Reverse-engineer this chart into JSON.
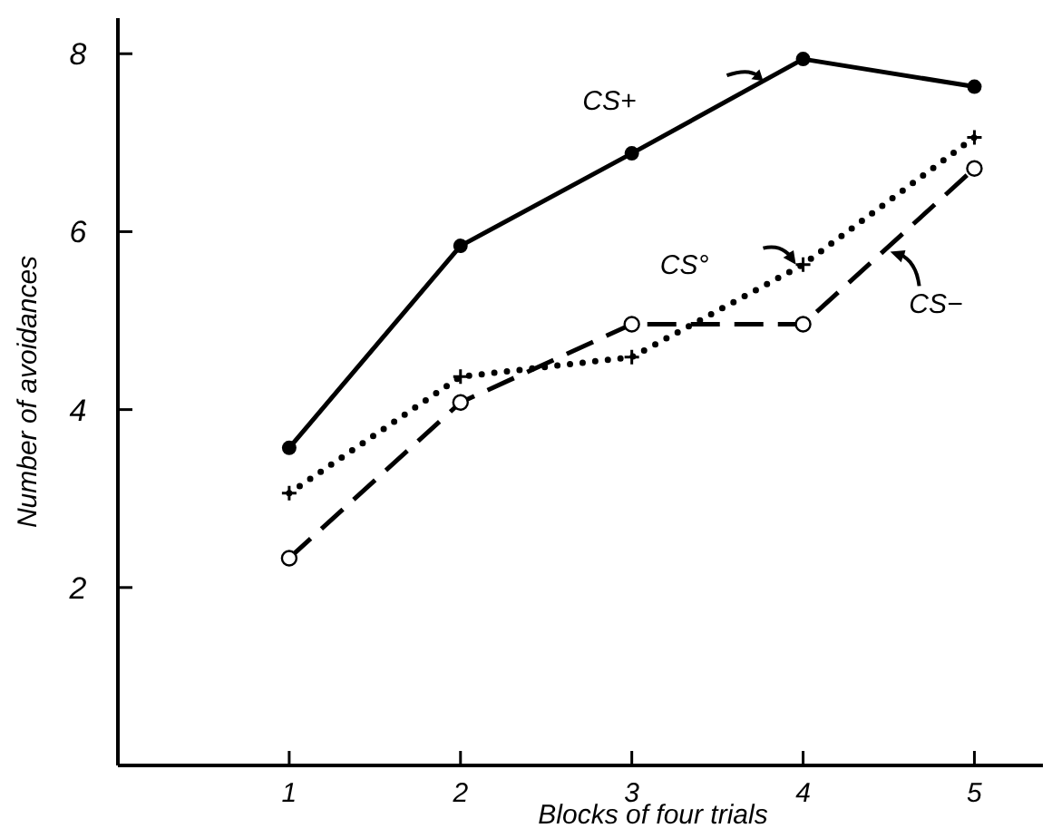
{
  "chart_data": {
    "type": "line",
    "xlabel": "Blocks of four trials",
    "ylabel": "Number of avoidances",
    "x": [
      1,
      2,
      3,
      4,
      5
    ],
    "xlim": [
      0,
      5.4
    ],
    "xticks": [
      1,
      2,
      3,
      4,
      5
    ],
    "ylim": [
      0,
      8.4
    ],
    "yticks": [
      2,
      4,
      6,
      8
    ],
    "grid": false,
    "series": [
      {
        "name": "CS+",
        "color": "#000000",
        "values": [
          3.57,
          5.84,
          6.88,
          7.94,
          7.63
        ],
        "marker": "circle",
        "line_style": "solid"
      },
      {
        "name": "CS°",
        "color": "#000000",
        "values": [
          3.06,
          4.37,
          4.59,
          5.63,
          7.06
        ],
        "marker": "cross",
        "line_style": "dotted"
      },
      {
        "name": "CS−",
        "color": "#000000",
        "values": [
          2.33,
          4.08,
          4.96,
          4.96,
          6.71
        ],
        "marker": "circle-open",
        "line_style": "dashed"
      }
    ]
  }
}
